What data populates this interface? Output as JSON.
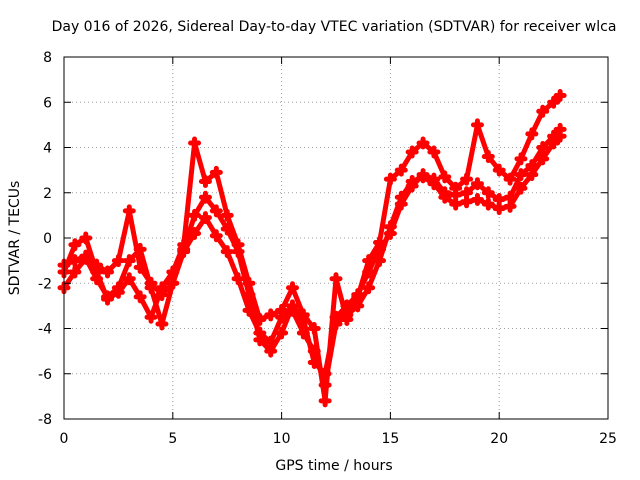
{
  "chart_data": {
    "type": "line",
    "title": "Day 016 of 2026, Sidereal Day-to-day VTEC variation (SDTVAR) for receiver wlca",
    "xlabel": "GPS time / hours",
    "ylabel": "SDTVAR / TECUs",
    "xlim": [
      0,
      25
    ],
    "ylim": [
      -8,
      8
    ],
    "xticks": [
      0,
      5,
      10,
      15,
      20,
      25
    ],
    "yticks": [
      -8,
      -6,
      -4,
      -2,
      0,
      2,
      4,
      6,
      8
    ],
    "grid": true,
    "legend": "none",
    "series_color": "#ff0000",
    "marker": "plus",
    "series": [
      {
        "name": "trace-1",
        "x": [
          0,
          0.5,
          1,
          1.5,
          2,
          2.5,
          3,
          3.5,
          4,
          4.5,
          5,
          5.5,
          6,
          6.5,
          7,
          7.5,
          8,
          8.5,
          9,
          9.5,
          10,
          10.5,
          11,
          11.5,
          12,
          12.5,
          13,
          13.5,
          14,
          14.5,
          15,
          15.5,
          16,
          16.5,
          17,
          17.5,
          18,
          18.5,
          19,
          19.5,
          20,
          20.5,
          21,
          21.5,
          22,
          22.5,
          22.8
        ],
        "y": [
          -1.2,
          -1.0,
          -0.8,
          -1.2,
          -1.5,
          -1.0,
          1.2,
          -1.3,
          -2.0,
          -2.5,
          -2.0,
          -0.5,
          1.0,
          1.8,
          1.2,
          0.4,
          -0.6,
          -2.5,
          -4.5,
          -5.0,
          -4.2,
          -3.0,
          -3.6,
          -5.5,
          -6.0,
          -3.5,
          -3.0,
          -2.5,
          -1.5,
          -0.5,
          0.2,
          1.5,
          2.3,
          2.8,
          2.6,
          2.0,
          1.9,
          2.0,
          2.4,
          2.0,
          1.7,
          1.8,
          2.8,
          3.2,
          4.0,
          4.5,
          4.8
        ]
      },
      {
        "name": "trace-2",
        "x": [
          0,
          0.5,
          1,
          1.5,
          2,
          2.5,
          3,
          3.5,
          4,
          4.5,
          5,
          5.5,
          6,
          6.5,
          7,
          7.5,
          8,
          8.5,
          9,
          9.5,
          10,
          10.5,
          11,
          11.5,
          12,
          12.5,
          13,
          13.5,
          14,
          14.5,
          15,
          15.5,
          16,
          16.5,
          17,
          17.5,
          18,
          18.5,
          19,
          19.5,
          20,
          20.5,
          21,
          21.5,
          22,
          22.5,
          22.8
        ],
        "y": [
          -2.2,
          -1.5,
          -0.9,
          -1.8,
          -2.6,
          -2.2,
          -1.0,
          -0.5,
          -2.2,
          -3.8,
          -2.0,
          -0.6,
          0.2,
          0.9,
          0.1,
          -0.6,
          -1.8,
          -3.2,
          -4.2,
          -4.6,
          -3.5,
          -3.2,
          -4.2,
          -5.0,
          -6.5,
          -3.8,
          -3.4,
          -3.0,
          -2.2,
          -1.0,
          0.5,
          1.8,
          2.5,
          2.7,
          2.4,
          1.8,
          1.5,
          1.6,
          1.7,
          1.5,
          1.3,
          1.4,
          2.2,
          2.8,
          3.5,
          4.2,
          4.5
        ]
      },
      {
        "name": "trace-3",
        "x": [
          0,
          0.5,
          1,
          1.5,
          2,
          2.5,
          3,
          3.5,
          4,
          4.5,
          5,
          5.5,
          6,
          6.5,
          7,
          7.5,
          8,
          8.5,
          9,
          9.5,
          10,
          10.5,
          11,
          11.5,
          12,
          12.5,
          13,
          13.5,
          14,
          14.5,
          15,
          15.5,
          16,
          16.5,
          17,
          17.5,
          18,
          18.5,
          19,
          19.5,
          20,
          20.5,
          21,
          21.5,
          22,
          22.5,
          22.8
        ],
        "y": [
          -1.5,
          -0.3,
          0.0,
          -1.5,
          -2.7,
          -2.4,
          -1.8,
          -2.6,
          -3.5,
          -2.2,
          -1.5,
          -0.3,
          4.2,
          2.5,
          2.9,
          1.0,
          -0.3,
          -2.0,
          -3.6,
          -3.4,
          -3.2,
          -2.2,
          -3.4,
          -4.0,
          -7.2,
          -1.8,
          -3.6,
          -2.6,
          -1.0,
          -0.2,
          2.6,
          3.0,
          3.8,
          4.2,
          3.8,
          2.7,
          2.2,
          2.6,
          5.0,
          3.6,
          3.0,
          2.6,
          3.5,
          4.6,
          5.6,
          6.0,
          6.3
        ]
      }
    ]
  }
}
